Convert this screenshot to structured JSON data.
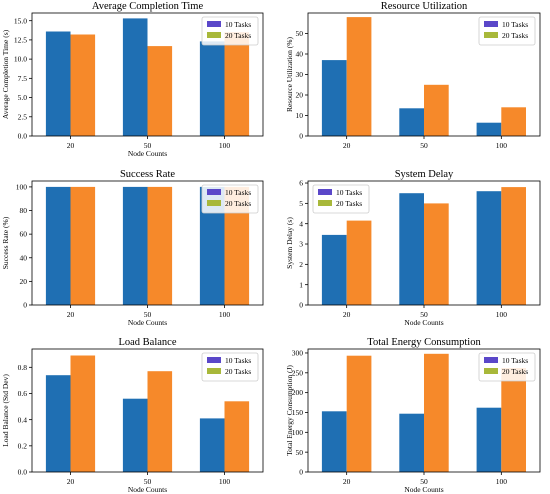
{
  "colors": {
    "series1": "#1f6fb3",
    "series2": "#f6892a",
    "legend_swatch1": "#5a47c9",
    "legend_swatch2": "#a8b83a"
  },
  "chart_data": [
    {
      "type": "bar",
      "title": "Average Completion Time",
      "xlabel": "Node Counts",
      "ylabel": "Average Completion Time (s)",
      "categories": [
        "20",
        "50",
        "100"
      ],
      "series": [
        {
          "name": "10 Tasks",
          "values": [
            13.6,
            15.3,
            12.3
          ]
        },
        {
          "name": "20 Tasks",
          "values": [
            13.2,
            11.7,
            13.5
          ]
        }
      ],
      "ylim": [
        0,
        16
      ],
      "yticks": [
        0.0,
        2.5,
        5.0,
        7.5,
        10.0,
        12.5,
        15.0
      ],
      "ytick_labels": [
        "0.0",
        "2.5",
        "5.0",
        "7.5",
        "10.0",
        "12.5",
        "15.0"
      ],
      "legend": "top-right"
    },
    {
      "type": "bar",
      "title": "Resource Utilization",
      "xlabel": "",
      "ylabel": "Resource Utilization (%)",
      "categories": [
        "20",
        "50",
        "100"
      ],
      "series": [
        {
          "name": "10 Tasks",
          "values": [
            37,
            13.5,
            6.5
          ]
        },
        {
          "name": "20 Tasks",
          "values": [
            58,
            25,
            14
          ]
        }
      ],
      "ylim": [
        0,
        60
      ],
      "yticks": [
        0,
        10,
        20,
        30,
        40,
        50
      ],
      "ytick_labels": [
        "0",
        "10",
        "20",
        "30",
        "40",
        "50"
      ],
      "legend": "top-right"
    },
    {
      "type": "bar",
      "title": "Success Rate",
      "xlabel": "Node Counts",
      "ylabel": "Success Rate (%)",
      "categories": [
        "20",
        "50",
        "100"
      ],
      "series": [
        {
          "name": "10 Tasks",
          "values": [
            100,
            100,
            100
          ]
        },
        {
          "name": "20 Tasks",
          "values": [
            100,
            100,
            100
          ]
        }
      ],
      "ylim": [
        0,
        105
      ],
      "yticks": [
        0,
        20,
        40,
        60,
        80,
        100
      ],
      "ytick_labels": [
        "0",
        "20",
        "40",
        "60",
        "80",
        "100"
      ],
      "legend": "top-right"
    },
    {
      "type": "bar",
      "title": "System Delay",
      "xlabel": "Node Counts",
      "ylabel": "System Delay (s)",
      "categories": [
        "20",
        "50",
        "100"
      ],
      "series": [
        {
          "name": "10 Tasks",
          "values": [
            3.45,
            5.5,
            5.6
          ]
        },
        {
          "name": "20 Tasks",
          "values": [
            4.15,
            5.0,
            5.8
          ]
        }
      ],
      "ylim": [
        0,
        6.1
      ],
      "yticks": [
        0,
        1,
        2,
        3,
        4,
        5,
        6
      ],
      "ytick_labels": [
        "0",
        "1",
        "2",
        "3",
        "4",
        "5",
        "6"
      ],
      "legend": "top-left"
    },
    {
      "type": "bar",
      "title": "Load Balance",
      "xlabel": "Node Counts",
      "ylabel": "Load Balance (Std Dev)",
      "categories": [
        "20",
        "50",
        "100"
      ],
      "series": [
        {
          "name": "10 Tasks",
          "values": [
            0.74,
            0.56,
            0.41
          ]
        },
        {
          "name": "20 Tasks",
          "values": [
            0.89,
            0.77,
            0.54
          ]
        }
      ],
      "ylim": [
        0,
        0.94
      ],
      "yticks": [
        0.0,
        0.2,
        0.4,
        0.6,
        0.8
      ],
      "ytick_labels": [
        "0.0",
        "0.2",
        "0.4",
        "0.6",
        "0.8"
      ],
      "legend": "top-right"
    },
    {
      "type": "bar",
      "title": "Total Energy Consumption",
      "xlabel": "Node Counts",
      "ylabel": "Total Energy Consumption (J)",
      "categories": [
        "20",
        "50",
        "100"
      ],
      "series": [
        {
          "name": "10 Tasks",
          "values": [
            153,
            147,
            162
          ]
        },
        {
          "name": "20 Tasks",
          "values": [
            293,
            298,
            262
          ]
        }
      ],
      "ylim": [
        0,
        310
      ],
      "yticks": [
        0,
        50,
        100,
        150,
        200,
        250,
        300
      ],
      "ytick_labels": [
        "0",
        "50",
        "100",
        "150",
        "200",
        "250",
        "300"
      ],
      "legend": "top-right"
    }
  ]
}
